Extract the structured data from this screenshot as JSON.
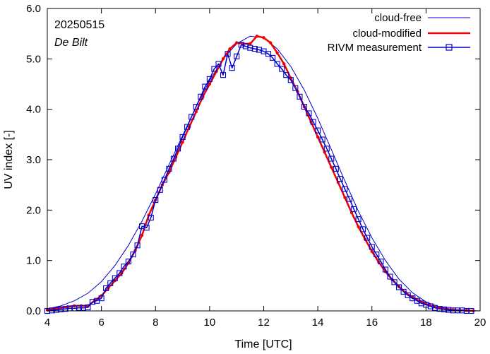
{
  "chart_data": {
    "type": "line",
    "date_label": "20250515",
    "station_label": "De Bilt",
    "xlabel": "Time  [UTC]",
    "ylabel": "UV index  [-]",
    "xlim": [
      4,
      20
    ],
    "ylim": [
      0,
      6
    ],
    "x_ticks": [
      4,
      6,
      8,
      10,
      12,
      14,
      16,
      18,
      20
    ],
    "y_ticks": [
      0,
      1,
      2,
      3,
      4,
      5,
      6
    ],
    "y_tick_labels": [
      "0.0",
      "1.0",
      "2.0",
      "3.0",
      "4.0",
      "5.0",
      "6.0"
    ],
    "grid": false,
    "legend": {
      "position": "top-right",
      "entries": [
        "cloud-free",
        "cloud-modified",
        "RIVM measurement"
      ]
    },
    "series": [
      {
        "name": "cloud-free",
        "color": "#0000cc",
        "x": [
          4.0,
          4.5,
          5.0,
          5.5,
          6.0,
          6.5,
          7.0,
          7.5,
          8.0,
          8.5,
          9.0,
          9.5,
          10.0,
          10.5,
          11.0,
          11.5,
          12.0,
          12.5,
          13.0,
          13.5,
          14.0,
          14.5,
          15.0,
          15.5,
          16.0,
          16.5,
          17.0,
          17.5,
          18.0,
          18.5,
          19.0,
          19.5,
          20.0
        ],
        "y": [
          0.04,
          0.1,
          0.2,
          0.35,
          0.58,
          0.9,
          1.3,
          1.78,
          2.32,
          2.9,
          3.48,
          4.05,
          4.57,
          5.0,
          5.3,
          5.45,
          5.42,
          5.2,
          4.85,
          4.38,
          3.82,
          3.2,
          2.58,
          1.98,
          1.45,
          1.0,
          0.63,
          0.36,
          0.18,
          0.08,
          0.03,
          0.01,
          0.0
        ]
      },
      {
        "name": "cloud-modified",
        "color": "#ee0000",
        "x": [
          4.0,
          4.25,
          4.5,
          4.75,
          5.0,
          5.25,
          5.5,
          5.75,
          6.0,
          6.25,
          6.5,
          6.75,
          7.0,
          7.25,
          7.5,
          7.75,
          8.0,
          8.25,
          8.5,
          8.75,
          9.0,
          9.25,
          9.5,
          9.75,
          10.0,
          10.25,
          10.5,
          10.75,
          11.0,
          11.25,
          11.5,
          11.75,
          12.0,
          12.25,
          12.5,
          12.75,
          13.0,
          13.25,
          13.5,
          13.75,
          14.0,
          14.25,
          14.5,
          14.75,
          15.0,
          15.25,
          15.5,
          15.75,
          16.0,
          16.25,
          16.5,
          16.75,
          17.0,
          17.25,
          17.5,
          17.75,
          18.0,
          18.25,
          18.5,
          18.75,
          19.0,
          19.25,
          19.5,
          19.75
        ],
        "y": [
          0.02,
          0.04,
          0.06,
          0.08,
          0.1,
          0.1,
          0.1,
          0.2,
          0.3,
          0.45,
          0.6,
          0.75,
          0.95,
          1.2,
          1.5,
          1.9,
          2.2,
          2.5,
          2.75,
          3.05,
          3.35,
          3.65,
          3.95,
          4.25,
          4.5,
          4.75,
          5.0,
          5.2,
          5.32,
          5.3,
          5.3,
          5.45,
          5.42,
          5.32,
          5.12,
          4.9,
          4.62,
          4.35,
          4.05,
          3.75,
          3.45,
          3.15,
          2.85,
          2.55,
          2.25,
          1.95,
          1.67,
          1.42,
          1.18,
          0.97,
          0.78,
          0.62,
          0.48,
          0.36,
          0.27,
          0.2,
          0.14,
          0.09,
          0.06,
          0.04,
          0.02,
          0.01,
          0.01,
          0.0
        ]
      },
      {
        "name": "RIVM measurement",
        "color": "#0000cc",
        "x": [
          4.0,
          4.17,
          4.33,
          4.5,
          4.67,
          4.83,
          5.0,
          5.17,
          5.33,
          5.5,
          5.67,
          5.83,
          6.0,
          6.17,
          6.33,
          6.5,
          6.67,
          6.83,
          7.0,
          7.17,
          7.33,
          7.5,
          7.67,
          7.83,
          8.0,
          8.17,
          8.33,
          8.5,
          8.67,
          8.83,
          9.0,
          9.17,
          9.33,
          9.5,
          9.67,
          9.83,
          10.0,
          10.17,
          10.33,
          10.5,
          10.67,
          10.83,
          11.0,
          11.17,
          11.33,
          11.5,
          11.67,
          11.83,
          12.0,
          12.17,
          12.33,
          12.5,
          12.67,
          12.83,
          13.0,
          13.17,
          13.33,
          13.5,
          13.67,
          13.83,
          14.0,
          14.17,
          14.33,
          14.5,
          14.67,
          14.83,
          15.0,
          15.17,
          15.33,
          15.5,
          15.67,
          15.83,
          16.0,
          16.17,
          16.33,
          16.5,
          16.67,
          16.83,
          17.0,
          17.17,
          17.33,
          17.5,
          17.67,
          17.83,
          18.0,
          18.17,
          18.33,
          18.5,
          18.67,
          18.83,
          19.0,
          19.17,
          19.33,
          19.5,
          19.67
        ],
        "y": [
          0.0,
          0.01,
          0.02,
          0.03,
          0.04,
          0.05,
          0.05,
          0.06,
          0.06,
          0.07,
          0.18,
          0.2,
          0.25,
          0.45,
          0.55,
          0.65,
          0.75,
          0.88,
          0.98,
          1.12,
          1.3,
          1.68,
          1.65,
          1.85,
          2.2,
          2.4,
          2.6,
          2.82,
          3.02,
          3.22,
          3.45,
          3.65,
          3.85,
          4.05,
          4.25,
          4.45,
          4.6,
          4.8,
          4.9,
          4.68,
          5.1,
          4.82,
          5.05,
          5.28,
          5.25,
          5.22,
          5.2,
          5.18,
          5.15,
          5.1,
          5.02,
          4.9,
          4.8,
          4.68,
          4.58,
          4.42,
          4.25,
          4.05,
          3.92,
          3.75,
          3.58,
          3.4,
          3.22,
          3.02,
          2.82,
          2.62,
          2.42,
          2.22,
          2.02,
          1.82,
          1.62,
          1.45,
          1.27,
          1.12,
          0.98,
          0.82,
          0.68,
          0.57,
          0.47,
          0.38,
          0.31,
          0.25,
          0.2,
          0.15,
          0.12,
          0.09,
          0.06,
          0.04,
          0.03,
          0.02,
          0.01,
          0.01,
          0.01,
          0.0,
          0.0
        ]
      }
    ]
  }
}
